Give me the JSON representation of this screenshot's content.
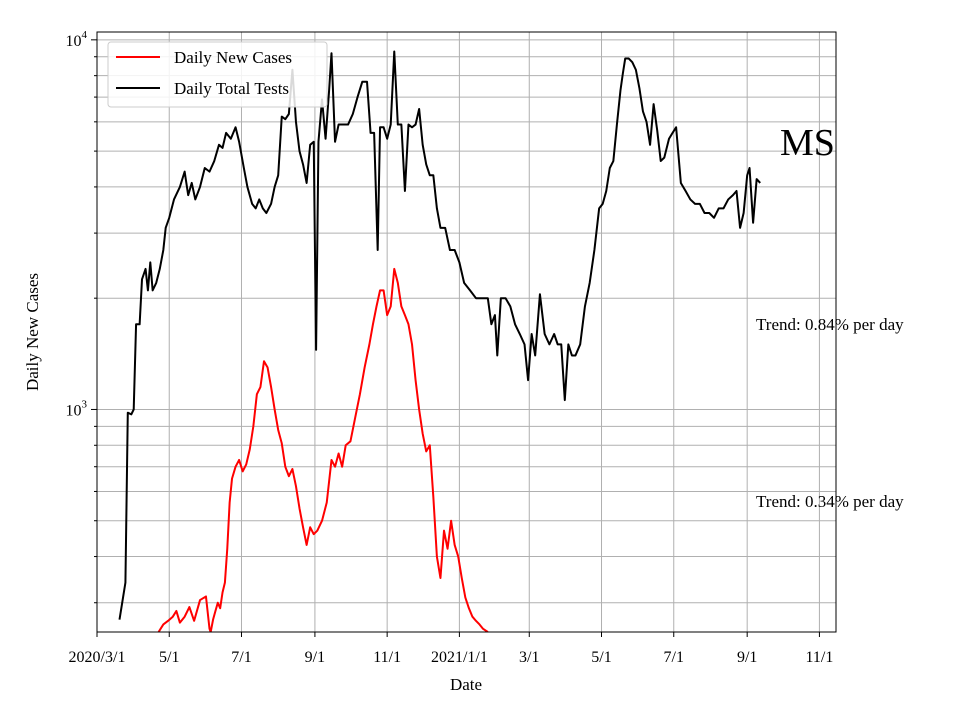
{
  "chart_data": {
    "type": "line",
    "xlabel": "Date",
    "ylabel": "Daily New Cases",
    "y_scale": "log",
    "ylim": [
      250,
      10500
    ],
    "xlim": [
      "2020-03-01",
      "2021-11-15"
    ],
    "grid": true,
    "legend_placement": "top-left",
    "x_ticks": [
      {
        "date": "2020-03-01",
        "label": "2020/3/1"
      },
      {
        "date": "2020-05-01",
        "label": "5/1"
      },
      {
        "date": "2020-07-01",
        "label": "7/1"
      },
      {
        "date": "2020-09-01",
        "label": "9/1"
      },
      {
        "date": "2020-11-01",
        "label": "11/1"
      },
      {
        "date": "2021-01-01",
        "label": "2021/1/1"
      },
      {
        "date": "2021-03-01",
        "label": "3/1"
      },
      {
        "date": "2021-05-01",
        "label": "5/1"
      },
      {
        "date": "2021-07-01",
        "label": "7/1"
      },
      {
        "date": "2021-09-01",
        "label": "9/1"
      },
      {
        "date": "2021-11-01",
        "label": "11/1"
      }
    ],
    "y_ticks": [
      {
        "value": 1000,
        "base": "10",
        "exp": "3"
      },
      {
        "value": 10000,
        "base": "10",
        "exp": "4"
      }
    ],
    "annotations": [
      {
        "text": "MS",
        "role": "state"
      },
      {
        "text": "Trend: 0.84% per day",
        "role": "trend-tests"
      },
      {
        "text": "Trend: 0.34% per day",
        "role": "trend-cases"
      }
    ],
    "series": [
      {
        "name": "Daily Total Tests",
        "color": "#000000",
        "points": [
          [
            "2020-03-20",
            270
          ],
          [
            "2020-03-23",
            310
          ],
          [
            "2020-03-25",
            340
          ],
          [
            "2020-03-27",
            980
          ],
          [
            "2020-03-30",
            970
          ],
          [
            "2020-04-01",
            1000
          ],
          [
            "2020-04-03",
            1700
          ],
          [
            "2020-04-06",
            1700
          ],
          [
            "2020-04-08",
            2250
          ],
          [
            "2020-04-11",
            2400
          ],
          [
            "2020-04-13",
            2100
          ],
          [
            "2020-04-15",
            2500
          ],
          [
            "2020-04-17",
            2100
          ],
          [
            "2020-04-20",
            2200
          ],
          [
            "2020-04-23",
            2400
          ],
          [
            "2020-04-26",
            2700
          ],
          [
            "2020-04-28",
            3100
          ],
          [
            "2020-05-01",
            3300
          ],
          [
            "2020-05-05",
            3700
          ],
          [
            "2020-05-10",
            4000
          ],
          [
            "2020-05-14",
            4400
          ],
          [
            "2020-05-17",
            3800
          ],
          [
            "2020-05-20",
            4100
          ],
          [
            "2020-05-23",
            3700
          ],
          [
            "2020-05-27",
            4000
          ],
          [
            "2020-05-31",
            4500
          ],
          [
            "2020-06-04",
            4400
          ],
          [
            "2020-06-08",
            4700
          ],
          [
            "2020-06-12",
            5200
          ],
          [
            "2020-06-15",
            5100
          ],
          [
            "2020-06-18",
            5600
          ],
          [
            "2020-06-22",
            5400
          ],
          [
            "2020-06-26",
            5800
          ],
          [
            "2020-06-29",
            5300
          ],
          [
            "2020-07-03",
            4500
          ],
          [
            "2020-07-06",
            4000
          ],
          [
            "2020-07-10",
            3600
          ],
          [
            "2020-07-13",
            3500
          ],
          [
            "2020-07-16",
            3700
          ],
          [
            "2020-07-19",
            3500
          ],
          [
            "2020-07-22",
            3400
          ],
          [
            "2020-07-26",
            3600
          ],
          [
            "2020-07-29",
            4000
          ],
          [
            "2020-08-01",
            4300
          ],
          [
            "2020-08-04",
            6200
          ],
          [
            "2020-08-07",
            6100
          ],
          [
            "2020-08-10",
            6300
          ],
          [
            "2020-08-13",
            8300
          ],
          [
            "2020-08-16",
            6000
          ],
          [
            "2020-08-19",
            5000
          ],
          [
            "2020-08-22",
            4600
          ],
          [
            "2020-08-25",
            4100
          ],
          [
            "2020-08-28",
            5200
          ],
          [
            "2020-08-31",
            5300
          ],
          [
            "2020-09-02",
            1450
          ],
          [
            "2020-09-04",
            5300
          ],
          [
            "2020-09-07",
            6900
          ],
          [
            "2020-09-10",
            5400
          ],
          [
            "2020-09-13",
            7300
          ],
          [
            "2020-09-15",
            9200
          ],
          [
            "2020-09-18",
            5300
          ],
          [
            "2020-09-21",
            5900
          ],
          [
            "2020-09-25",
            5900
          ],
          [
            "2020-09-29",
            5900
          ],
          [
            "2020-10-03",
            6300
          ],
          [
            "2020-10-07",
            7000
          ],
          [
            "2020-10-11",
            7700
          ],
          [
            "2020-10-15",
            7700
          ],
          [
            "2020-10-18",
            5600
          ],
          [
            "2020-10-21",
            5600
          ],
          [
            "2020-10-24",
            2700
          ],
          [
            "2020-10-26",
            5800
          ],
          [
            "2020-10-29",
            5800
          ],
          [
            "2020-11-01",
            5400
          ],
          [
            "2020-11-04",
            5900
          ],
          [
            "2020-11-07",
            9300
          ],
          [
            "2020-11-10",
            5900
          ],
          [
            "2020-11-13",
            5900
          ],
          [
            "2020-11-16",
            3900
          ],
          [
            "2020-11-19",
            5900
          ],
          [
            "2020-11-22",
            5800
          ],
          [
            "2020-11-25",
            5900
          ],
          [
            "2020-11-28",
            6500
          ],
          [
            "2020-12-01",
            5200
          ],
          [
            "2020-12-04",
            4600
          ],
          [
            "2020-12-07",
            4300
          ],
          [
            "2020-12-10",
            4300
          ],
          [
            "2020-12-13",
            3500
          ],
          [
            "2020-12-16",
            3100
          ],
          [
            "2020-12-20",
            3100
          ],
          [
            "2020-12-24",
            2700
          ],
          [
            "2020-12-28",
            2700
          ],
          [
            "2021-01-01",
            2500
          ],
          [
            "2021-01-05",
            2200
          ],
          [
            "2021-01-10",
            2100
          ],
          [
            "2021-01-15",
            2000
          ],
          [
            "2021-01-20",
            2000
          ],
          [
            "2021-01-25",
            2000
          ],
          [
            "2021-01-28",
            1700
          ],
          [
            "2021-01-31",
            1800
          ],
          [
            "2021-02-02",
            1400
          ],
          [
            "2021-02-05",
            2000
          ],
          [
            "2021-02-09",
            2000
          ],
          [
            "2021-02-13",
            1900
          ],
          [
            "2021-02-17",
            1700
          ],
          [
            "2021-02-21",
            1600
          ],
          [
            "2021-02-25",
            1500
          ],
          [
            "2021-02-28",
            1200
          ],
          [
            "2021-03-03",
            1600
          ],
          [
            "2021-03-06",
            1400
          ],
          [
            "2021-03-10",
            2050
          ],
          [
            "2021-03-14",
            1600
          ],
          [
            "2021-03-18",
            1500
          ],
          [
            "2021-03-22",
            1600
          ],
          [
            "2021-03-25",
            1500
          ],
          [
            "2021-03-28",
            1500
          ],
          [
            "2021-03-31",
            1060
          ],
          [
            "2021-04-03",
            1500
          ],
          [
            "2021-04-06",
            1400
          ],
          [
            "2021-04-09",
            1400
          ],
          [
            "2021-04-13",
            1500
          ],
          [
            "2021-04-17",
            1900
          ],
          [
            "2021-04-21",
            2200
          ],
          [
            "2021-04-25",
            2700
          ],
          [
            "2021-04-29",
            3500
          ],
          [
            "2021-05-02",
            3600
          ],
          [
            "2021-05-05",
            3900
          ],
          [
            "2021-05-08",
            4500
          ],
          [
            "2021-05-11",
            4700
          ],
          [
            "2021-05-14",
            5900
          ],
          [
            "2021-05-17",
            7300
          ],
          [
            "2021-05-19",
            8100
          ],
          [
            "2021-05-21",
            8900
          ],
          [
            "2021-05-24",
            8900
          ],
          [
            "2021-05-27",
            8700
          ],
          [
            "2021-05-30",
            8300
          ],
          [
            "2021-06-02",
            7400
          ],
          [
            "2021-06-05",
            6400
          ],
          [
            "2021-06-08",
            6000
          ],
          [
            "2021-06-11",
            5200
          ],
          [
            "2021-06-14",
            6700
          ],
          [
            "2021-06-17",
            5700
          ],
          [
            "2021-06-20",
            4700
          ],
          [
            "2021-06-23",
            4800
          ],
          [
            "2021-06-27",
            5400
          ],
          [
            "2021-06-30",
            5600
          ],
          [
            "2021-07-03",
            5800
          ],
          [
            "2021-07-07",
            4100
          ],
          [
            "2021-07-11",
            3900
          ],
          [
            "2021-07-15",
            3700
          ],
          [
            "2021-07-19",
            3600
          ],
          [
            "2021-07-23",
            3600
          ],
          [
            "2021-07-27",
            3400
          ],
          [
            "2021-07-31",
            3400
          ],
          [
            "2021-08-04",
            3300
          ],
          [
            "2021-08-08",
            3500
          ],
          [
            "2021-08-12",
            3500
          ],
          [
            "2021-08-16",
            3700
          ],
          [
            "2021-08-20",
            3800
          ],
          [
            "2021-08-23",
            3900
          ],
          [
            "2021-08-26",
            3100
          ],
          [
            "2021-08-29",
            3400
          ],
          [
            "2021-09-01",
            4300
          ],
          [
            "2021-09-03",
            4500
          ],
          [
            "2021-09-06",
            3200
          ],
          [
            "2021-09-09",
            4200
          ],
          [
            "2021-09-12",
            4100
          ]
        ]
      },
      {
        "name": "Daily New Cases",
        "color": "#ff0000",
        "points": [
          [
            "2020-04-22",
            250
          ],
          [
            "2020-04-26",
            262
          ],
          [
            "2020-04-30",
            268
          ],
          [
            "2020-05-04",
            275
          ],
          [
            "2020-05-07",
            285
          ],
          [
            "2020-05-10",
            265
          ],
          [
            "2020-05-14",
            275
          ],
          [
            "2020-05-18",
            292
          ],
          [
            "2020-05-22",
            268
          ],
          [
            "2020-05-27",
            305
          ],
          [
            "2020-06-01",
            312
          ],
          [
            "2020-06-04",
            255
          ],
          [
            "2020-06-05",
            250
          ],
          [
            "2020-06-07",
            270
          ],
          [
            "2020-06-09",
            285
          ],
          [
            "2020-06-11",
            300
          ],
          [
            "2020-06-13",
            290
          ],
          [
            "2020-06-15",
            320
          ],
          [
            "2020-06-17",
            340
          ],
          [
            "2020-06-19",
            420
          ],
          [
            "2020-06-21",
            560
          ],
          [
            "2020-06-23",
            650
          ],
          [
            "2020-06-26",
            700
          ],
          [
            "2020-06-29",
            730
          ],
          [
            "2020-07-02",
            680
          ],
          [
            "2020-07-05",
            710
          ],
          [
            "2020-07-08",
            780
          ],
          [
            "2020-07-11",
            900
          ],
          [
            "2020-07-14",
            1100
          ],
          [
            "2020-07-17",
            1150
          ],
          [
            "2020-07-20",
            1350
          ],
          [
            "2020-07-23",
            1300
          ],
          [
            "2020-07-26",
            1150
          ],
          [
            "2020-07-29",
            1000
          ],
          [
            "2020-08-01",
            880
          ],
          [
            "2020-08-04",
            810
          ],
          [
            "2020-08-07",
            700
          ],
          [
            "2020-08-10",
            660
          ],
          [
            "2020-08-13",
            690
          ],
          [
            "2020-08-16",
            620
          ],
          [
            "2020-08-19",
            540
          ],
          [
            "2020-08-22",
            480
          ],
          [
            "2020-08-25",
            430
          ],
          [
            "2020-08-28",
            480
          ],
          [
            "2020-08-31",
            460
          ],
          [
            "2020-09-03",
            470
          ],
          [
            "2020-09-07",
            500
          ],
          [
            "2020-09-11",
            560
          ],
          [
            "2020-09-15",
            730
          ],
          [
            "2020-09-18",
            700
          ],
          [
            "2020-09-21",
            760
          ],
          [
            "2020-09-24",
            700
          ],
          [
            "2020-09-27",
            800
          ],
          [
            "2020-10-01",
            820
          ],
          [
            "2020-10-05",
            950
          ],
          [
            "2020-10-09",
            1100
          ],
          [
            "2020-10-13",
            1300
          ],
          [
            "2020-10-17",
            1500
          ],
          [
            "2020-10-20",
            1700
          ],
          [
            "2020-10-23",
            1900
          ],
          [
            "2020-10-26",
            2100
          ],
          [
            "2020-10-29",
            2100
          ],
          [
            "2020-11-01",
            1800
          ],
          [
            "2020-11-04",
            1900
          ],
          [
            "2020-11-07",
            2400
          ],
          [
            "2020-11-10",
            2200
          ],
          [
            "2020-11-13",
            1900
          ],
          [
            "2020-11-16",
            1800
          ],
          [
            "2020-11-19",
            1700
          ],
          [
            "2020-11-22",
            1500
          ],
          [
            "2020-11-25",
            1200
          ],
          [
            "2020-11-28",
            1000
          ],
          [
            "2020-12-01",
            860
          ],
          [
            "2020-12-04",
            770
          ],
          [
            "2020-12-07",
            800
          ],
          [
            "2020-12-10",
            580
          ],
          [
            "2020-12-13",
            400
          ],
          [
            "2020-12-16",
            350
          ],
          [
            "2020-12-19",
            470
          ],
          [
            "2020-12-22",
            420
          ],
          [
            "2020-12-25",
            500
          ],
          [
            "2020-12-28",
            430
          ],
          [
            "2020-12-31",
            400
          ],
          [
            "2021-01-03",
            350
          ],
          [
            "2021-01-06",
            310
          ],
          [
            "2021-01-09",
            290
          ],
          [
            "2021-01-12",
            275
          ],
          [
            "2021-01-15",
            268
          ],
          [
            "2021-01-18",
            262
          ],
          [
            "2021-01-21",
            255
          ],
          [
            "2021-01-25",
            250
          ]
        ]
      }
    ]
  }
}
